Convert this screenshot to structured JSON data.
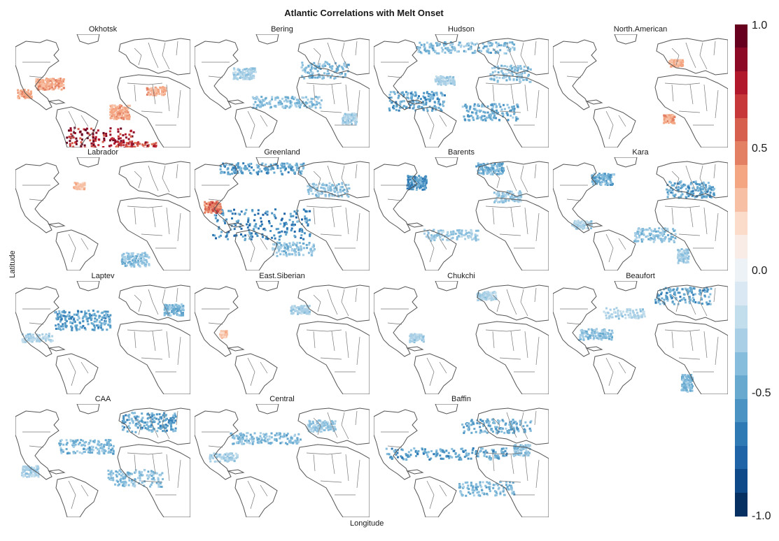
{
  "title": "Atlantic Correlations with Melt Onset",
  "xlabel": "Longitude",
  "ylabel": "Latitude",
  "panels": [
    {
      "name": "Okhotsk",
      "blobs": [
        [
          "pos",
          120,
          150,
          12,
          48,
          18,
          0.9
        ],
        [
          "pos",
          170,
          165,
          10,
          30,
          12,
          0.75
        ],
        [
          "pos",
          148,
          110,
          10,
          14,
          10,
          0.4
        ],
        [
          "pos",
          48,
          70,
          12,
          20,
          8,
          0.4
        ],
        [
          "pos",
          12,
          84,
          5,
          10,
          6,
          0.4
        ],
        [
          "pos",
          200,
          80,
          6,
          14,
          6,
          0.4
        ]
      ]
    },
    {
      "name": "Bering",
      "blobs": [
        [
          "neg",
          185,
          50,
          8,
          34,
          12,
          0.45
        ],
        [
          "neg",
          130,
          96,
          10,
          50,
          8,
          0.4
        ],
        [
          "neg",
          70,
          55,
          8,
          16,
          8,
          0.3
        ],
        [
          "neg",
          220,
          120,
          6,
          10,
          8,
          0.3
        ]
      ]
    },
    {
      "name": "Hudson",
      "blobs": [
        [
          "neg",
          130,
          18,
          12,
          70,
          8,
          0.45
        ],
        [
          "neg",
          60,
          95,
          12,
          40,
          14,
          0.55
        ],
        [
          "neg",
          165,
          110,
          10,
          40,
          12,
          0.5
        ],
        [
          "neg",
          195,
          55,
          8,
          30,
          12,
          0.4
        ],
        [
          "neg",
          100,
          65,
          6,
          14,
          6,
          0.3
        ]
      ]
    },
    {
      "name": "North.American",
      "blobs": [
        [
          "pos",
          165,
          120,
          6,
          8,
          6,
          0.4
        ],
        [
          "pos",
          175,
          40,
          5,
          10,
          5,
          0.35
        ]
      ]
    },
    {
      "name": "Labrador",
      "blobs": [
        [
          "neg",
          170,
          145,
          8,
          20,
          10,
          0.4
        ],
        [
          "pos",
          90,
          40,
          5,
          8,
          5,
          0.3
        ]
      ]
    },
    {
      "name": "Greenland",
      "blobs": [
        [
          "neg",
          95,
          15,
          12,
          60,
          8,
          0.55
        ],
        [
          "neg",
          95,
          95,
          14,
          70,
          22,
          0.65
        ],
        [
          "neg",
          190,
          45,
          8,
          30,
          10,
          0.4
        ],
        [
          "neg",
          140,
          130,
          8,
          30,
          10,
          0.4
        ],
        [
          "pos",
          25,
          70,
          8,
          12,
          8,
          0.55
        ]
      ]
    },
    {
      "name": "Barents",
      "blobs": [
        [
          "neg",
          60,
          35,
          10,
          14,
          10,
          0.6
        ],
        [
          "neg",
          165,
          15,
          8,
          20,
          8,
          0.5
        ],
        [
          "neg",
          110,
          110,
          8,
          40,
          8,
          0.35
        ],
        [
          "neg",
          190,
          55,
          6,
          20,
          8,
          0.35
        ]
      ]
    },
    {
      "name": "Kara",
      "blobs": [
        [
          "neg",
          70,
          30,
          8,
          16,
          8,
          0.5
        ],
        [
          "neg",
          195,
          45,
          10,
          34,
          12,
          0.55
        ],
        [
          "neg",
          145,
          110,
          8,
          30,
          10,
          0.4
        ],
        [
          "neg",
          40,
          95,
          6,
          14,
          6,
          0.3
        ],
        [
          "neg",
          185,
          140,
          6,
          8,
          10,
          0.35
        ]
      ]
    },
    {
      "name": "Laptev",
      "blobs": [
        [
          "neg",
          95,
          55,
          14,
          40,
          14,
          0.55
        ],
        [
          "neg",
          225,
          40,
          8,
          14,
          8,
          0.45
        ],
        [
          "neg",
          30,
          80,
          6,
          22,
          6,
          0.3
        ]
      ]
    },
    {
      "name": "East.Siberian",
      "blobs": [
        [
          "neg",
          150,
          40,
          6,
          14,
          6,
          0.3
        ],
        [
          "pos",
          40,
          75,
          5,
          5,
          5,
          0.3
        ]
      ]
    },
    {
      "name": "Chukchi",
      "blobs": [
        [
          "neg",
          160,
          20,
          6,
          14,
          6,
          0.3
        ],
        [
          "neg",
          60,
          80,
          6,
          10,
          6,
          0.3
        ]
      ]
    },
    {
      "name": "Beaufort",
      "blobs": [
        [
          "neg",
          185,
          20,
          10,
          40,
          12,
          0.55
        ],
        [
          "neg",
          60,
          75,
          8,
          24,
          8,
          0.4
        ],
        [
          "neg",
          190,
          145,
          8,
          8,
          12,
          0.45
        ],
        [
          "neg",
          100,
          45,
          6,
          30,
          8,
          0.3
        ]
      ]
    },
    {
      "name": "CAA",
      "blobs": [
        [
          "neg",
          190,
          25,
          12,
          40,
          14,
          0.55
        ],
        [
          "neg",
          100,
          60,
          10,
          40,
          10,
          0.45
        ],
        [
          "neg",
          170,
          105,
          10,
          40,
          12,
          0.4
        ],
        [
          "neg",
          20,
          95,
          6,
          12,
          8,
          0.3
        ]
      ]
    },
    {
      "name": "Central",
      "blobs": [
        [
          "neg",
          100,
          48,
          10,
          50,
          8,
          0.45
        ],
        [
          "neg",
          180,
          30,
          8,
          20,
          8,
          0.35
        ],
        [
          "neg",
          40,
          75,
          6,
          20,
          6,
          0.3
        ]
      ]
    },
    {
      "name": "Baffin",
      "blobs": [
        [
          "neg",
          175,
          30,
          10,
          50,
          10,
          0.5
        ],
        [
          "neg",
          100,
          70,
          12,
          90,
          8,
          0.55
        ],
        [
          "neg",
          160,
          120,
          8,
          40,
          10,
          0.45
        ],
        [
          "neg",
          210,
          65,
          6,
          12,
          8,
          0.4
        ]
      ]
    }
  ],
  "colorbar": {
    "ticks": [
      "1.0",
      "0.5",
      "0.0",
      "-0.5",
      "-1.0"
    ],
    "colors": [
      "#67001f",
      "#8c0a25",
      "#b2182b",
      "#c7383a",
      "#d6604d",
      "#e37f63",
      "#f4a582",
      "#f7c0a4",
      "#fbdbc9",
      "#f9ece6",
      "#edf2f6",
      "#d9e8f2",
      "#c2ddec",
      "#a8cfe5",
      "#86bcdc",
      "#67a9cf",
      "#4a93c3",
      "#2f79b5",
      "#1f64a7",
      "#0e4a8a",
      "#053061"
    ]
  }
}
